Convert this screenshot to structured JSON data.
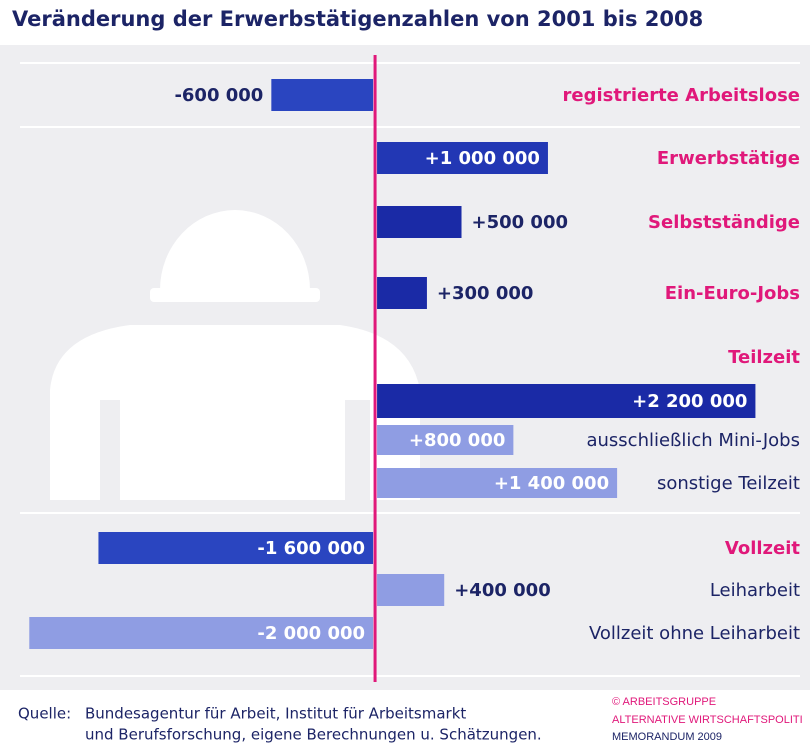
{
  "chart_data": {
    "type": "bar",
    "orientation": "horizontal",
    "title": "Veränderung der Erwerbstätigenzahlen von 2001 bis 2008",
    "categories": [
      "registrierte Arbeitslose",
      "Erwerbstätige",
      "Selbstständige",
      "Ein-Euro-Jobs",
      "Teilzeit",
      "ausschließlich Mini-Jobs",
      "sonstige Teilzeit",
      "Vollzeit",
      "Leiharbeit",
      "Vollzeit ohne Leiharbeit"
    ],
    "values": [
      -600000,
      1000000,
      500000,
      300000,
      2200000,
      800000,
      1400000,
      -1600000,
      400000,
      -2000000
    ],
    "value_labels": [
      "-600 000",
      "+1 000 000",
      "+500 000",
      "+300 000",
      "+2 200 000",
      "+800 000",
      "+1 400 000",
      "-1 600 000",
      "+400 000",
      "-2 000 000"
    ],
    "colors": [
      "#2a45c0",
      "#2237b4",
      "#1a2aa6",
      "#1a2aa6",
      "#1a2aa6",
      "#8f9de3",
      "#8f9de3",
      "#2a45c0",
      "#8f9de3",
      "#8f9de3"
    ],
    "category_colors": [
      "#e0187a",
      "#e0187a",
      "#e0187a",
      "#e0187a",
      "#e0187a",
      "#1c2466",
      "#1c2466",
      "#e0187a",
      "#1c2466",
      "#1c2466"
    ],
    "zero_line_color": "#e0187a",
    "xlim": [
      -2100000,
      2400000
    ],
    "source": [
      "Quelle:",
      "Bundesagentur für Arbeit, Institut für Arbeitsmarkt",
      "und Berufsforschung, eigene Berechnungen u. Schätzungen."
    ],
    "credit": [
      "© ARBEITSGRUPPE",
      "ALTERNATIVE WIRTSCHAFTSPOLITI",
      "MEMORANDUM 2009"
    ]
  }
}
